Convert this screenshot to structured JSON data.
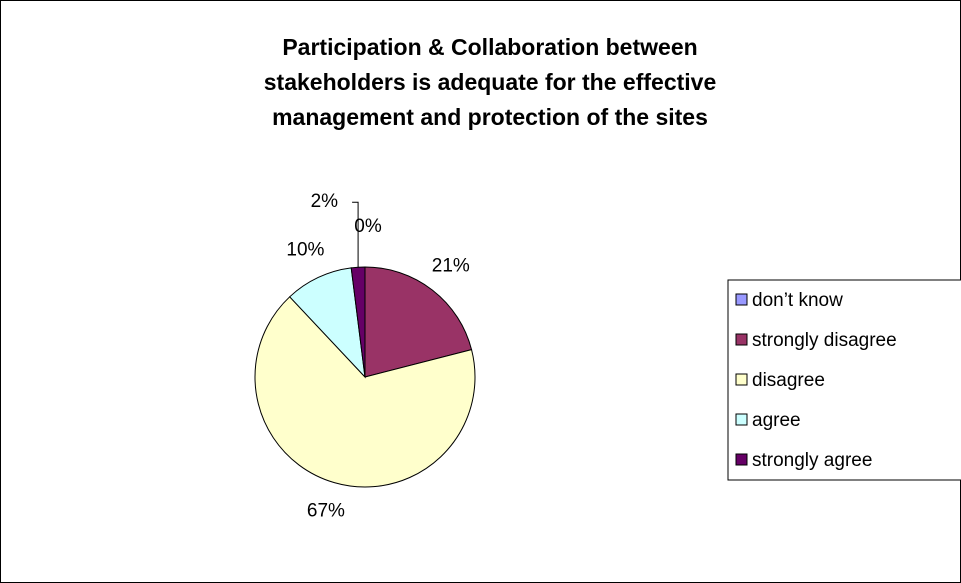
{
  "chart_data": {
    "type": "pie",
    "title": "Participation & Collaboration between\nstakeholders is adequate for the effective\nmanagement and protection of the sites",
    "categories": [
      "don’t know",
      "strongly disagree",
      "disagree",
      "agree",
      "strongly agree"
    ],
    "values": [
      0,
      21,
      67,
      10,
      2
    ],
    "value_labels": [
      "0%",
      "21%",
      "67%",
      "10%",
      "2%"
    ],
    "colors": [
      "#9999ff",
      "#993366",
      "#ffffcc",
      "#ccffff",
      "#660066"
    ],
    "legend": "right"
  }
}
